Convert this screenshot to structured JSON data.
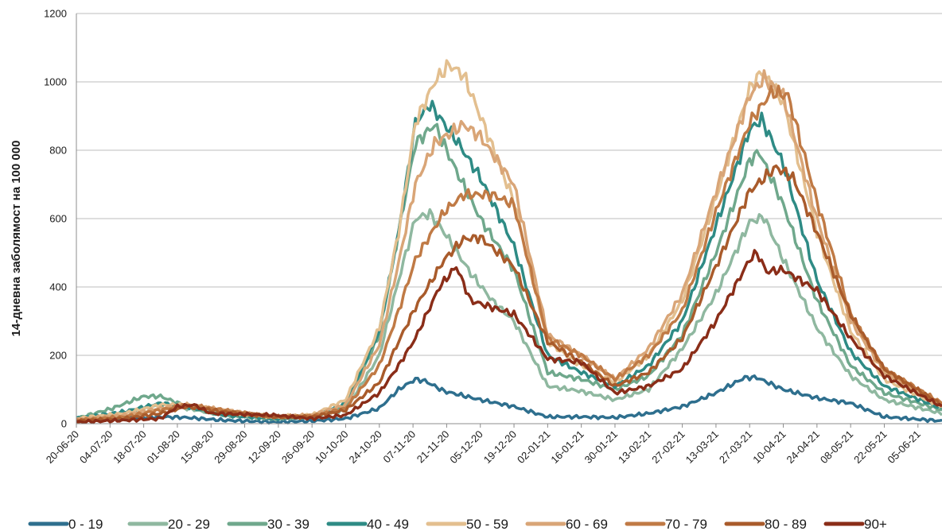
{
  "chart_data": {
    "type": "line",
    "title": "",
    "xlabel": "",
    "ylabel": "14-дневна заболямост на 100 000",
    "ylim": [
      0,
      1200
    ],
    "yticks": [
      0,
      200,
      400,
      600,
      800,
      1000,
      1200
    ],
    "ytick_labels": [
      "0",
      "200",
      "400",
      "600",
      "800",
      "1000",
      "1200"
    ],
    "xlim": [
      "2020-06-20",
      "2021-06-15"
    ],
    "xticks": [
      "2020-06-20",
      "2020-07-04",
      "2020-07-18",
      "2020-08-01",
      "2020-08-15",
      "2020-08-29",
      "2020-09-12",
      "2020-09-26",
      "2020-10-10",
      "2020-10-24",
      "2020-11-07",
      "2020-11-21",
      "2020-12-05",
      "2020-12-19",
      "2021-01-02",
      "2021-01-16",
      "2021-01-30",
      "2021-02-13",
      "2021-02-27",
      "2021-03-13",
      "2021-03-27",
      "2021-04-10",
      "2021-04-24",
      "2021-05-08",
      "2021-05-22",
      "2021-06-05"
    ],
    "xtick_labels": [
      "20-06-20",
      "04-07-20",
      "18-07-20",
      "01-08-20",
      "15-08-20",
      "29-08-20",
      "12-09-20",
      "26-09-20",
      "10-10-20",
      "24-10-20",
      "07-11-20",
      "21-11-20",
      "05-12-20",
      "19-12-20",
      "02-01-21",
      "16-01-21",
      "30-01-21",
      "13-02-21",
      "27-02-21",
      "13-03-21",
      "27-03-21",
      "10-04-21",
      "24-04-21",
      "08-05-21",
      "22-05-21",
      "05-06-21"
    ],
    "grid": "horizontal",
    "legend": "bottom",
    "series": [
      {
        "name": "0 - 19",
        "color": "#2e6f8e",
        "points": [
          [
            "2020-06-20",
            8
          ],
          [
            "2020-07-10",
            15
          ],
          [
            "2020-07-25",
            20
          ],
          [
            "2020-08-05",
            18
          ],
          [
            "2020-08-20",
            10
          ],
          [
            "2020-09-10",
            5
          ],
          [
            "2020-09-26",
            8
          ],
          [
            "2020-10-10",
            15
          ],
          [
            "2020-10-24",
            45
          ],
          [
            "2020-11-01",
            100
          ],
          [
            "2020-11-08",
            130
          ],
          [
            "2020-11-12",
            125
          ],
          [
            "2020-11-20",
            95
          ],
          [
            "2020-12-05",
            70
          ],
          [
            "2020-12-19",
            50
          ],
          [
            "2021-01-02",
            20
          ],
          [
            "2021-01-16",
            20
          ],
          [
            "2021-01-30",
            18
          ],
          [
            "2021-02-13",
            30
          ],
          [
            "2021-02-27",
            50
          ],
          [
            "2021-03-13",
            90
          ],
          [
            "2021-03-25",
            135
          ],
          [
            "2021-03-30",
            135
          ],
          [
            "2021-04-10",
            100
          ],
          [
            "2021-04-24",
            75
          ],
          [
            "2021-05-08",
            60
          ],
          [
            "2021-05-22",
            20
          ],
          [
            "2021-06-15",
            8
          ]
        ]
      },
      {
        "name": "20 - 29",
        "color": "#8fb8a0",
        "points": [
          [
            "2020-06-20",
            10
          ],
          [
            "2020-07-10",
            30
          ],
          [
            "2020-07-25",
            55
          ],
          [
            "2020-08-05",
            45
          ],
          [
            "2020-08-20",
            25
          ],
          [
            "2020-09-10",
            15
          ],
          [
            "2020-09-26",
            20
          ],
          [
            "2020-10-10",
            40
          ],
          [
            "2020-10-24",
            200
          ],
          [
            "2020-11-01",
            420
          ],
          [
            "2020-11-08",
            600
          ],
          [
            "2020-11-14",
            615
          ],
          [
            "2020-11-20",
            560
          ],
          [
            "2020-12-01",
            440
          ],
          [
            "2020-12-10",
            360
          ],
          [
            "2020-12-19",
            300
          ],
          [
            "2021-01-02",
            110
          ],
          [
            "2021-01-16",
            95
          ],
          [
            "2021-01-30",
            70
          ],
          [
            "2021-02-13",
            100
          ],
          [
            "2021-02-27",
            220
          ],
          [
            "2021-03-13",
            380
          ],
          [
            "2021-03-27",
            590
          ],
          [
            "2021-04-02",
            605
          ],
          [
            "2021-04-10",
            480
          ],
          [
            "2021-04-24",
            280
          ],
          [
            "2021-05-08",
            140
          ],
          [
            "2021-05-22",
            70
          ],
          [
            "2021-06-15",
            30
          ]
        ]
      },
      {
        "name": "30 - 39",
        "color": "#6fa88c",
        "points": [
          [
            "2020-06-20",
            15
          ],
          [
            "2020-07-05",
            45
          ],
          [
            "2020-07-18",
            80
          ],
          [
            "2020-07-25",
            80
          ],
          [
            "2020-08-05",
            50
          ],
          [
            "2020-08-20",
            30
          ],
          [
            "2020-09-10",
            15
          ],
          [
            "2020-09-26",
            20
          ],
          [
            "2020-10-10",
            50
          ],
          [
            "2020-10-24",
            260
          ],
          [
            "2020-11-01",
            560
          ],
          [
            "2020-11-08",
            820
          ],
          [
            "2020-11-16",
            875
          ],
          [
            "2020-11-25",
            740
          ],
          [
            "2020-12-05",
            600
          ],
          [
            "2020-12-19",
            450
          ],
          [
            "2021-01-02",
            150
          ],
          [
            "2021-01-16",
            130
          ],
          [
            "2021-01-30",
            100
          ],
          [
            "2021-02-13",
            140
          ],
          [
            "2021-02-27",
            260
          ],
          [
            "2021-03-13",
            500
          ],
          [
            "2021-03-27",
            770
          ],
          [
            "2021-03-31",
            795
          ],
          [
            "2021-04-10",
            640
          ],
          [
            "2021-04-24",
            360
          ],
          [
            "2021-05-08",
            170
          ],
          [
            "2021-05-22",
            90
          ],
          [
            "2021-06-15",
            40
          ]
        ]
      },
      {
        "name": "40 - 49",
        "color": "#2e8b85",
        "points": [
          [
            "2020-06-20",
            15
          ],
          [
            "2020-07-10",
            35
          ],
          [
            "2020-07-25",
            60
          ],
          [
            "2020-08-05",
            50
          ],
          [
            "2020-08-20",
            25
          ],
          [
            "2020-09-10",
            15
          ],
          [
            "2020-09-26",
            20
          ],
          [
            "2020-10-10",
            60
          ],
          [
            "2020-10-24",
            270
          ],
          [
            "2020-11-01",
            560
          ],
          [
            "2020-11-08",
            880
          ],
          [
            "2020-11-14",
            935
          ],
          [
            "2020-11-25",
            830
          ],
          [
            "2020-12-05",
            720
          ],
          [
            "2020-12-19",
            520
          ],
          [
            "2021-01-02",
            200
          ],
          [
            "2021-01-16",
            150
          ],
          [
            "2021-01-30",
            110
          ],
          [
            "2021-02-13",
            170
          ],
          [
            "2021-02-27",
            300
          ],
          [
            "2021-03-13",
            580
          ],
          [
            "2021-03-27",
            860
          ],
          [
            "2021-04-01",
            890
          ],
          [
            "2021-04-10",
            760
          ],
          [
            "2021-04-24",
            420
          ],
          [
            "2021-05-08",
            210
          ],
          [
            "2021-05-22",
            110
          ],
          [
            "2021-06-15",
            45
          ]
        ]
      },
      {
        "name": "50 - 59",
        "color": "#e3bf8f",
        "points": [
          [
            "2020-06-20",
            15
          ],
          [
            "2020-07-10",
            30
          ],
          [
            "2020-07-25",
            55
          ],
          [
            "2020-08-05",
            55
          ],
          [
            "2020-08-20",
            35
          ],
          [
            "2020-09-10",
            20
          ],
          [
            "2020-09-26",
            25
          ],
          [
            "2020-10-10",
            70
          ],
          [
            "2020-10-24",
            280
          ],
          [
            "2020-11-01",
            560
          ],
          [
            "2020-11-08",
            880
          ],
          [
            "2020-11-16",
            1000
          ],
          [
            "2020-11-22",
            1050
          ],
          [
            "2020-11-28",
            1020
          ],
          [
            "2020-12-05",
            900
          ],
          [
            "2020-12-19",
            650
          ],
          [
            "2021-01-02",
            240
          ],
          [
            "2021-01-16",
            170
          ],
          [
            "2021-01-30",
            120
          ],
          [
            "2021-02-13",
            200
          ],
          [
            "2021-02-27",
            360
          ],
          [
            "2021-03-13",
            660
          ],
          [
            "2021-03-27",
            980
          ],
          [
            "2021-04-01",
            1030
          ],
          [
            "2021-04-10",
            940
          ],
          [
            "2021-04-24",
            560
          ],
          [
            "2021-05-08",
            270
          ],
          [
            "2021-05-22",
            130
          ],
          [
            "2021-06-15",
            50
          ]
        ]
      },
      {
        "name": "60 - 69",
        "color": "#d9a577",
        "points": [
          [
            "2020-06-20",
            12
          ],
          [
            "2020-07-10",
            25
          ],
          [
            "2020-07-25",
            45
          ],
          [
            "2020-08-05",
            55
          ],
          [
            "2020-08-20",
            40
          ],
          [
            "2020-09-10",
            20
          ],
          [
            "2020-09-26",
            25
          ],
          [
            "2020-10-10",
            55
          ],
          [
            "2020-10-24",
            230
          ],
          [
            "2020-11-01",
            470
          ],
          [
            "2020-11-08",
            700
          ],
          [
            "2020-11-16",
            820
          ],
          [
            "2020-11-28",
            875
          ],
          [
            "2020-12-05",
            840
          ],
          [
            "2020-12-19",
            700
          ],
          [
            "2021-01-02",
            260
          ],
          [
            "2021-01-16",
            200
          ],
          [
            "2021-01-30",
            130
          ],
          [
            "2021-02-13",
            220
          ],
          [
            "2021-02-27",
            380
          ],
          [
            "2021-03-13",
            680
          ],
          [
            "2021-03-27",
            960
          ],
          [
            "2021-04-02",
            1010
          ],
          [
            "2021-04-10",
            960
          ],
          [
            "2021-04-24",
            600
          ],
          [
            "2021-05-08",
            300
          ],
          [
            "2021-05-22",
            150
          ],
          [
            "2021-06-15",
            55
          ]
        ]
      },
      {
        "name": "70 - 79",
        "color": "#c07a45",
        "points": [
          [
            "2020-06-20",
            10
          ],
          [
            "2020-07-10",
            20
          ],
          [
            "2020-07-25",
            40
          ],
          [
            "2020-08-05",
            55
          ],
          [
            "2020-08-20",
            40
          ],
          [
            "2020-09-10",
            20
          ],
          [
            "2020-09-26",
            22
          ],
          [
            "2020-10-10",
            45
          ],
          [
            "2020-10-24",
            170
          ],
          [
            "2020-11-01",
            330
          ],
          [
            "2020-11-08",
            480
          ],
          [
            "2020-11-20",
            620
          ],
          [
            "2020-11-28",
            670
          ],
          [
            "2020-12-10",
            670
          ],
          [
            "2020-12-19",
            640
          ],
          [
            "2021-01-02",
            250
          ],
          [
            "2021-01-16",
            200
          ],
          [
            "2021-01-30",
            130
          ],
          [
            "2021-02-13",
            200
          ],
          [
            "2021-02-27",
            330
          ],
          [
            "2021-03-13",
            620
          ],
          [
            "2021-03-27",
            880
          ],
          [
            "2021-04-05",
            970
          ],
          [
            "2021-04-12",
            960
          ],
          [
            "2021-04-24",
            650
          ],
          [
            "2021-05-08",
            320
          ],
          [
            "2021-05-22",
            160
          ],
          [
            "2021-06-15",
            60
          ]
        ]
      },
      {
        "name": "80 - 89",
        "color": "#a95b2b",
        "points": [
          [
            "2020-06-20",
            8
          ],
          [
            "2020-07-10",
            15
          ],
          [
            "2020-07-25",
            30
          ],
          [
            "2020-08-05",
            50
          ],
          [
            "2020-08-20",
            35
          ],
          [
            "2020-09-10",
            20
          ],
          [
            "2020-09-26",
            20
          ],
          [
            "2020-10-10",
            40
          ],
          [
            "2020-10-24",
            120
          ],
          [
            "2020-11-01",
            240
          ],
          [
            "2020-11-08",
            340
          ],
          [
            "2020-11-20",
            480
          ],
          [
            "2020-11-28",
            540
          ],
          [
            "2020-12-05",
            545
          ],
          [
            "2020-12-19",
            460
          ],
          [
            "2021-01-02",
            240
          ],
          [
            "2021-01-16",
            180
          ],
          [
            "2021-01-30",
            110
          ],
          [
            "2021-02-13",
            150
          ],
          [
            "2021-02-27",
            250
          ],
          [
            "2021-03-13",
            460
          ],
          [
            "2021-03-27",
            680
          ],
          [
            "2021-04-07",
            750
          ],
          [
            "2021-04-14",
            720
          ],
          [
            "2021-04-24",
            560
          ],
          [
            "2021-05-08",
            320
          ],
          [
            "2021-05-22",
            160
          ],
          [
            "2021-06-15",
            55
          ]
        ]
      },
      {
        "name": "90+",
        "color": "#8a2d18",
        "points": [
          [
            "2020-06-20",
            5
          ],
          [
            "2020-07-10",
            10
          ],
          [
            "2020-07-25",
            15
          ],
          [
            "2020-08-01",
            50
          ],
          [
            "2020-08-08",
            55
          ],
          [
            "2020-08-15",
            30
          ],
          [
            "2020-09-10",
            25
          ],
          [
            "2020-09-26",
            15
          ],
          [
            "2020-10-10",
            25
          ],
          [
            "2020-10-24",
            90
          ],
          [
            "2020-11-01",
            170
          ],
          [
            "2020-11-08",
            250
          ],
          [
            "2020-11-18",
            400
          ],
          [
            "2020-11-25",
            460
          ],
          [
            "2020-12-01",
            360
          ],
          [
            "2020-12-10",
            340
          ],
          [
            "2020-12-19",
            320
          ],
          [
            "2021-01-02",
            190
          ],
          [
            "2021-01-16",
            180
          ],
          [
            "2021-01-30",
            90
          ],
          [
            "2021-02-13",
            110
          ],
          [
            "2021-02-27",
            160
          ],
          [
            "2021-03-13",
            300
          ],
          [
            "2021-03-27",
            480
          ],
          [
            "2021-03-30",
            500
          ],
          [
            "2021-04-03",
            445
          ],
          [
            "2021-04-10",
            450
          ],
          [
            "2021-04-24",
            390
          ],
          [
            "2021-05-08",
            250
          ],
          [
            "2021-05-22",
            140
          ],
          [
            "2021-06-15",
            50
          ]
        ]
      }
    ]
  }
}
